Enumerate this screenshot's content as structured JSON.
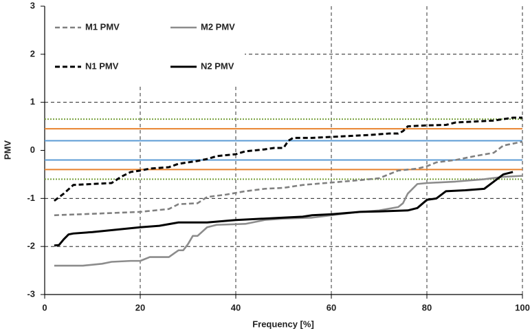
{
  "chart_data": {
    "type": "line",
    "x_label": "Frequency [%]",
    "y_label": "PMV",
    "xlim": [
      0,
      100
    ],
    "xticks": [
      0,
      20,
      40,
      60,
      80,
      100
    ],
    "ylim": [
      -3,
      3
    ],
    "yticks": [
      -3,
      -2,
      -1,
      0,
      1,
      2,
      3
    ],
    "grid": true,
    "reference_lines": [
      {
        "color": "#77a03c",
        "values": [
          0.65,
          -0.6
        ]
      },
      {
        "color": "#e8822e",
        "values": [
          0.45,
          -0.4
        ]
      },
      {
        "color": "#5b9bd5",
        "values": [
          0.2,
          -0.2
        ]
      }
    ],
    "series": [
      {
        "name": "M1 PMV",
        "color": "#808080",
        "dash": true,
        "x": [
          2,
          10,
          20,
          26,
          28,
          32,
          34,
          38,
          42,
          46,
          50,
          54,
          60,
          66,
          70,
          72,
          74,
          78,
          80,
          82,
          86,
          90,
          94,
          96,
          100
        ],
        "values": [
          -1.35,
          -1.32,
          -1.28,
          -1.22,
          -1.12,
          -1.1,
          -0.97,
          -0.92,
          -0.85,
          -0.8,
          -0.78,
          -0.72,
          -0.67,
          -0.62,
          -0.58,
          -0.5,
          -0.42,
          -0.38,
          -0.33,
          -0.25,
          -0.2,
          -0.12,
          -0.05,
          0.1,
          0.18
        ]
      },
      {
        "name": "M2 PMV",
        "color": "#8c8c8c",
        "dash": false,
        "x": [
          2,
          8,
          12,
          14,
          18,
          20,
          22,
          26,
          28,
          29,
          30,
          31,
          32,
          34,
          36,
          42,
          46,
          50,
          56,
          60,
          66,
          70,
          74,
          75,
          76,
          78,
          80,
          86,
          92,
          96,
          100
        ],
        "values": [
          -2.4,
          -2.4,
          -2.36,
          -2.32,
          -2.3,
          -2.3,
          -2.22,
          -2.22,
          -2.08,
          -2.08,
          -1.95,
          -1.78,
          -1.78,
          -1.6,
          -1.55,
          -1.53,
          -1.45,
          -1.42,
          -1.4,
          -1.35,
          -1.28,
          -1.25,
          -1.18,
          -1.1,
          -0.9,
          -0.7,
          -0.68,
          -0.65,
          -0.6,
          -0.55,
          -0.53
        ]
      },
      {
        "name": "N1 PMV",
        "color": "#000000",
        "dash": true,
        "x": [
          2,
          4,
          6,
          10,
          14,
          16,
          18,
          20,
          22,
          26,
          28,
          32,
          34,
          36,
          40,
          42,
          46,
          48,
          50,
          51,
          52,
          56,
          60,
          64,
          68,
          72,
          74,
          75,
          76,
          80,
          84,
          86,
          90,
          94,
          96,
          98,
          100
        ],
        "values": [
          -1.05,
          -0.9,
          -0.72,
          -0.7,
          -0.68,
          -0.55,
          -0.45,
          -0.42,
          -0.38,
          -0.35,
          -0.28,
          -0.22,
          -0.18,
          -0.12,
          -0.08,
          -0.02,
          0.02,
          0.05,
          0.05,
          0.2,
          0.26,
          0.26,
          0.28,
          0.3,
          0.32,
          0.35,
          0.35,
          0.4,
          0.5,
          0.52,
          0.53,
          0.58,
          0.6,
          0.62,
          0.65,
          0.68,
          0.68
        ]
      },
      {
        "name": "N2 PMV",
        "color": "#000000",
        "dash": false,
        "x": [
          2,
          3,
          4,
          5,
          6,
          10,
          20,
          24,
          28,
          34,
          40,
          50,
          54,
          56,
          60,
          66,
          70,
          76,
          78,
          80,
          82,
          84,
          88,
          92,
          94,
          96,
          98
        ],
        "values": [
          -1.98,
          -1.97,
          -1.85,
          -1.75,
          -1.73,
          -1.7,
          -1.6,
          -1.57,
          -1.5,
          -1.5,
          -1.45,
          -1.4,
          -1.38,
          -1.35,
          -1.33,
          -1.28,
          -1.27,
          -1.25,
          -1.2,
          -1.03,
          -1.0,
          -0.85,
          -0.83,
          -0.8,
          -0.65,
          -0.5,
          -0.45
        ]
      }
    ]
  }
}
